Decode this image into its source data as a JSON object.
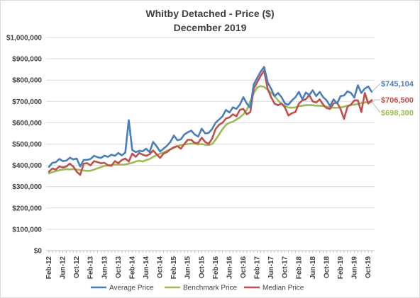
{
  "colors": {
    "average": "#4a7ebb",
    "benchmark": "#9bbb59",
    "median": "#c0504d",
    "grid": "#d9d9d9",
    "axis": "#bfbfbf",
    "text": "#404040"
  },
  "chart_data": {
    "type": "line",
    "title": "Whitby Detached - Price ($)",
    "subtitle": "December 2019",
    "xlabel": "",
    "ylabel": "",
    "ylim": [
      0,
      1000000
    ],
    "yticks": [
      "$0",
      "$100,000",
      "$200,000",
      "$300,000",
      "$400,000",
      "$500,000",
      "$600,000",
      "$700,000",
      "$800,000",
      "$900,000",
      "$1,000,000"
    ],
    "xtick_labels": [
      {
        "label": "Feb-12",
        "index": 0
      },
      {
        "label": "Jun-12",
        "index": 4
      },
      {
        "label": "Oct-12",
        "index": 8
      },
      {
        "label": "Feb-13",
        "index": 12
      },
      {
        "label": "Jun-13",
        "index": 16
      },
      {
        "label": "Oct-13",
        "index": 20
      },
      {
        "label": "Feb-14",
        "index": 24
      },
      {
        "label": "Jun-14",
        "index": 28
      },
      {
        "label": "Oct-14",
        "index": 32
      },
      {
        "label": "Feb-15",
        "index": 36
      },
      {
        "label": "Jun-15",
        "index": 40
      },
      {
        "label": "Oct-15",
        "index": 44
      },
      {
        "label": "Feb-16",
        "index": 48
      },
      {
        "label": "Jun-16",
        "index": 52
      },
      {
        "label": "Oct-16",
        "index": 56
      },
      {
        "label": "Feb-17",
        "index": 60
      },
      {
        "label": "Jun-17",
        "index": 64
      },
      {
        "label": "Oct-17",
        "index": 68
      },
      {
        "label": "Feb-18",
        "index": 72
      },
      {
        "label": "Jun-18",
        "index": 76
      },
      {
        "label": "Oct-18",
        "index": 80
      },
      {
        "label": "Feb-19",
        "index": 84
      },
      {
        "label": "Jun-19",
        "index": 88
      },
      {
        "label": "Oct-19",
        "index": 92
      }
    ],
    "x_start": "Feb-12",
    "x_end": "Dec-19",
    "legend_position": "bottom",
    "grid": true,
    "series": [
      {
        "name": "Average Price",
        "color_key": "average",
        "end_label": "$745,104",
        "values": [
          393000,
          412000,
          415000,
          430000,
          420000,
          422000,
          436000,
          428000,
          432000,
          395000,
          425000,
          426000,
          430000,
          445000,
          438000,
          435000,
          446000,
          440000,
          450000,
          445000,
          458000,
          447000,
          460000,
          612000,
          472000,
          462000,
          468000,
          466000,
          478000,
          462000,
          510000,
          490000,
          465000,
          478000,
          492000,
          510000,
          540000,
          518000,
          522000,
          545000,
          555000,
          563000,
          545000,
          535000,
          572000,
          550000,
          552000,
          570000,
          600000,
          615000,
          630000,
          660000,
          648000,
          672000,
          665000,
          685000,
          720000,
          690000,
          670000,
          780000,
          810000,
          840000,
          862000,
          790000,
          760000,
          725000,
          740000,
          720000,
          690000,
          685000,
          705000,
          720000,
          745000,
          710000,
          742000,
          730000,
          752000,
          725000,
          745000,
          720000,
          705000,
          678000,
          710000,
          690000,
          725000,
          728000,
          748000,
          740000,
          718000,
          776000,
          740000,
          760000,
          770000,
          745104
        ]
      },
      {
        "name": "Benchmark Price",
        "color_key": "benchmark",
        "end_label": "$698,300",
        "values": [
          362000,
          368000,
          373000,
          377000,
          380000,
          382000,
          381000,
          382000,
          380000,
          378000,
          376000,
          374000,
          375000,
          380000,
          386000,
          392000,
          397000,
          400000,
          402000,
          403000,
          404000,
          403000,
          404000,
          408000,
          412000,
          418000,
          422000,
          418000,
          425000,
          430000,
          440000,
          448000,
          455000,
          460000,
          468000,
          475000,
          482000,
          490000,
          495000,
          498000,
          500000,
          502000,
          502000,
          498000,
          500000,
          497000,
          495000,
          500000,
          520000,
          545000,
          570000,
          590000,
          600000,
          605000,
          615000,
          625000,
          640000,
          660000,
          700000,
          740000,
          765000,
          772000,
          768000,
          755000,
          740000,
          725000,
          705000,
          688000,
          680000,
          672000,
          670000,
          672000,
          678000,
          680000,
          682000,
          683000,
          682000,
          680000,
          680000,
          678000,
          675000,
          672000,
          670000,
          670000,
          672000,
          675000,
          680000,
          683000,
          685000,
          688000,
          692000,
          695000,
          698000,
          698300
        ]
      },
      {
        "name": "Median Price",
        "color_key": "median",
        "end_label": "$706,500",
        "values": [
          370000,
          385000,
          380000,
          395000,
          390000,
          395000,
          408000,
          395000,
          370000,
          355000,
          408000,
          410000,
          400000,
          420000,
          415000,
          410000,
          412000,
          400000,
          398000,
          420000,
          410000,
          425000,
          432000,
          418000,
          455000,
          440000,
          458000,
          450000,
          445000,
          452000,
          470000,
          452000,
          435000,
          455000,
          462000,
          475000,
          485000,
          490000,
          478000,
          500000,
          520000,
          520000,
          505000,
          505000,
          530000,
          510000,
          500000,
          525000,
          570000,
          590000,
          600000,
          620000,
          625000,
          640000,
          630000,
          660000,
          665000,
          640000,
          650000,
          760000,
          790000,
          820000,
          845000,
          760000,
          720000,
          690000,
          682000,
          690000,
          672000,
          634000,
          645000,
          650000,
          690000,
          705000,
          710000,
          730000,
          700000,
          695000,
          710000,
          685000,
          668000,
          665000,
          690000,
          695000,
          664000,
          618000,
          675000,
          685000,
          705000,
          705000,
          650000,
          740000,
          690000,
          706500
        ]
      }
    ]
  }
}
